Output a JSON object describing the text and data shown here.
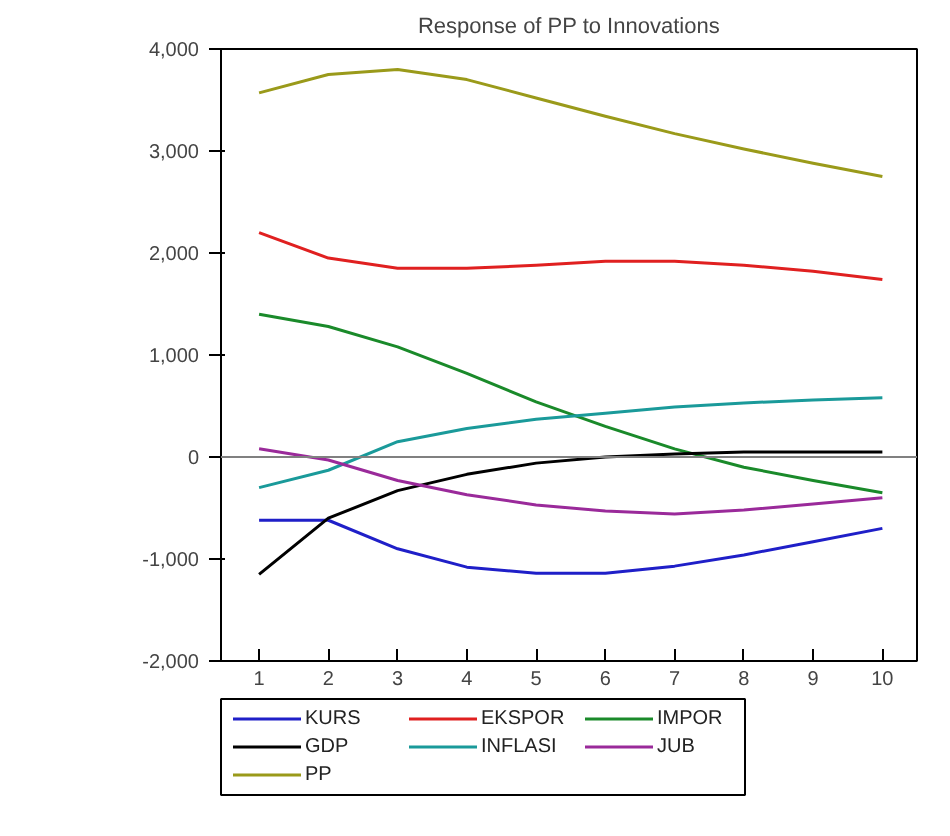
{
  "chart_data": {
    "type": "line",
    "title": "Response of PP to Innovations",
    "x": [
      1,
      2,
      3,
      4,
      5,
      6,
      7,
      8,
      9,
      10
    ],
    "xlim": [
      0.45,
      10.5
    ],
    "xticks": [
      1,
      2,
      3,
      4,
      5,
      6,
      7,
      8,
      9,
      10
    ],
    "ylim": [
      -2000,
      4000
    ],
    "yticks": [
      {
        "value": -2000,
        "label": "-2,000"
      },
      {
        "value": -1000,
        "label": "-1,000"
      },
      0,
      {
        "value": 1000,
        "label": "1,000"
      },
      {
        "value": 2000,
        "label": "2,000"
      },
      {
        "value": 3000,
        "label": "3,000"
      },
      {
        "value": 4000,
        "label": "4,000"
      }
    ],
    "ref_lines": [
      {
        "axis": "y",
        "value": 0,
        "label": null,
        "color": "#808080"
      }
    ],
    "series": [
      {
        "name": "KURS",
        "color": "#1f1fc8",
        "values": [
          -620,
          -620,
          -900,
          -1080,
          -1140,
          -1140,
          -1070,
          -960,
          -830,
          -700
        ]
      },
      {
        "name": "EKSPOR",
        "color": "#e02020",
        "values": [
          2200,
          1950,
          1850,
          1850,
          1880,
          1920,
          1920,
          1880,
          1820,
          1740
        ]
      },
      {
        "name": "IMPOR",
        "color": "#1a8a2a",
        "values": [
          1400,
          1280,
          1080,
          820,
          540,
          300,
          80,
          -100,
          -230,
          -350
        ]
      },
      {
        "name": "GDP",
        "color": "#000000",
        "values": [
          -1150,
          -600,
          -330,
          -170,
          -60,
          0,
          30,
          50,
          50,
          50
        ]
      },
      {
        "name": "INFLASI",
        "color": "#1a9a9a",
        "values": [
          -300,
          -130,
          150,
          280,
          370,
          430,
          490,
          530,
          560,
          580
        ]
      },
      {
        "name": "JUB",
        "color": "#9a2a9a",
        "values": [
          80,
          -30,
          -230,
          -370,
          -470,
          -530,
          -560,
          -520,
          -460,
          -400
        ]
      },
      {
        "name": "PP",
        "color": "#9a9a1a",
        "values": [
          3570,
          3750,
          3800,
          3700,
          3520,
          3340,
          3170,
          3020,
          2880,
          2750
        ]
      }
    ],
    "legend": "bottom",
    "grid": false
  }
}
